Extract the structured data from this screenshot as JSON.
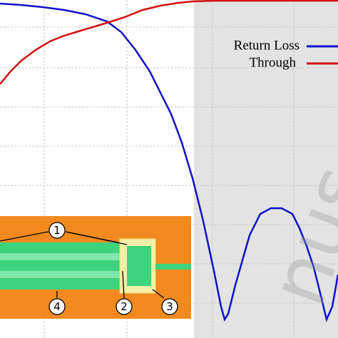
{
  "chart_data": {
    "type": "line",
    "xlim": [
      0,
      474
    ],
    "ylim": [
      0,
      474
    ],
    "grid": true,
    "legend": "upper right",
    "series": [
      {
        "name": "Return Loss",
        "color": "#1010c8",
        "x": [
          0,
          30,
          60,
          90,
          120,
          150,
          170,
          190,
          210,
          225,
          240,
          255,
          270,
          285,
          300,
          310,
          315,
          320,
          330,
          340,
          350,
          365,
          380,
          395,
          410,
          420,
          430,
          440,
          450,
          458,
          466,
          474
        ],
        "values": [
          469,
          467,
          464,
          460,
          454,
          444,
          429,
          404,
          374,
          344,
          314,
          274,
          224,
          164,
          94,
          44,
          26,
          34,
          74,
          109,
          144,
          174,
          182,
          182,
          174,
          154,
          129,
          99,
          59,
          26,
          44,
          89
        ]
      },
      {
        "name": "Through",
        "color": "#d41010",
        "x": [
          0,
          15,
          30,
          50,
          70,
          90,
          110,
          130,
          150,
          175,
          200,
          225,
          250,
          270,
          300,
          350,
          400,
          474
        ],
        "values": [
          356,
          374,
          389,
          404,
          416,
          424,
          430,
          436,
          442,
          450,
          460,
          466,
          470,
          472,
          473,
          473,
          473,
          473
        ]
      }
    ],
    "inset_labels": [
      "1",
      "2",
      "3",
      "4"
    ],
    "watermark": "nus"
  }
}
